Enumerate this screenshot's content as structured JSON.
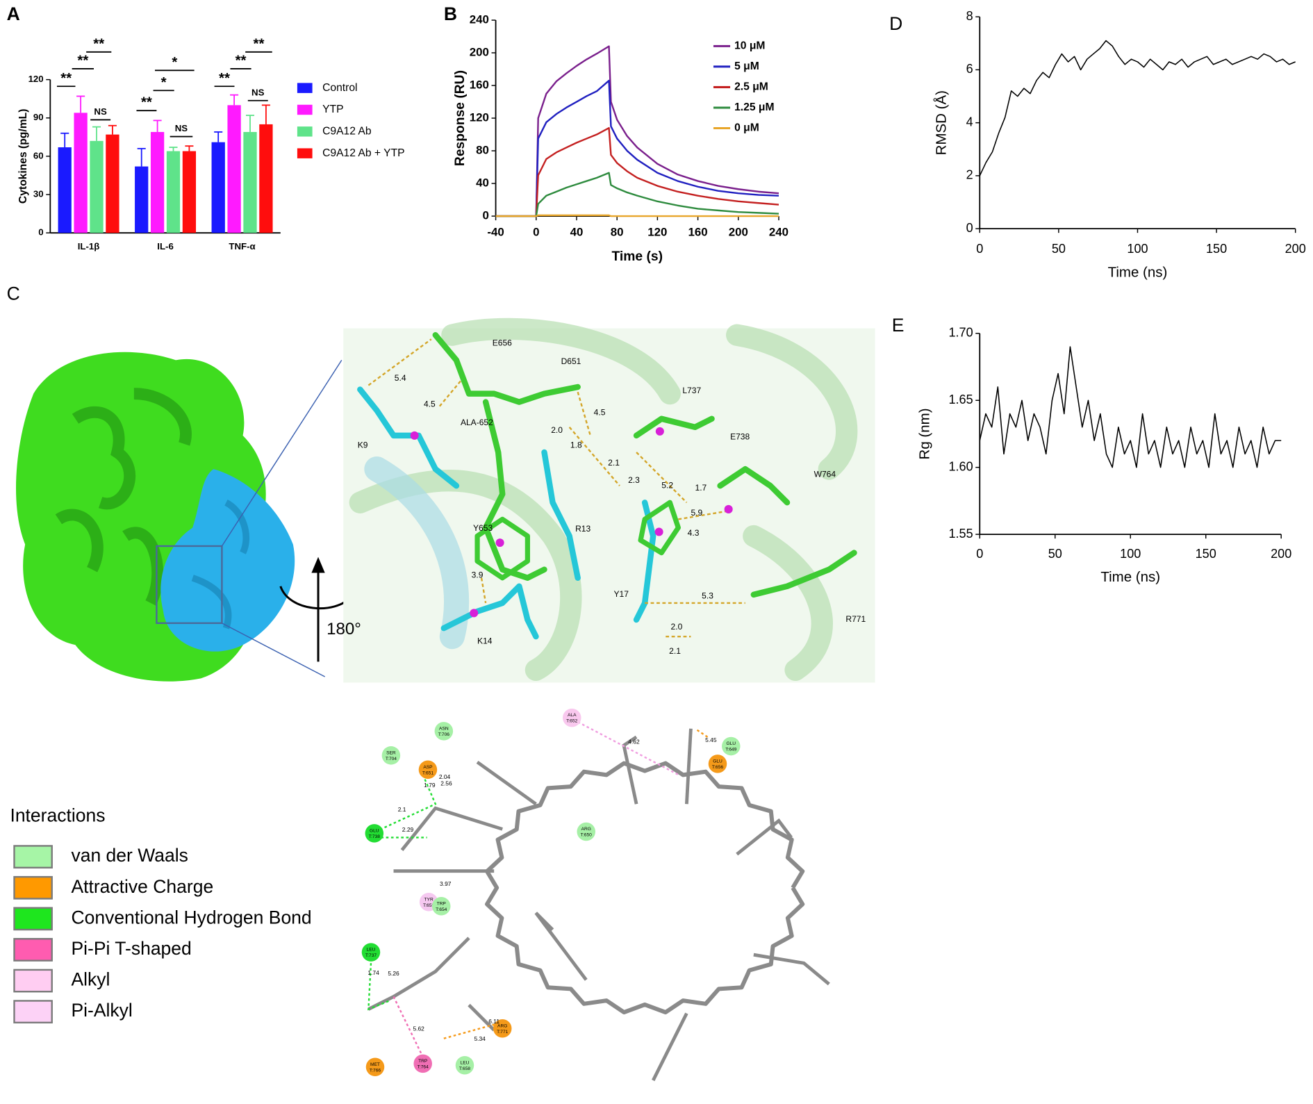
{
  "chart_data": [
    {
      "type": "bar",
      "panel": "A",
      "y_label": "Cytokines (pg/mL)",
      "categories": [
        "IL-1β",
        "IL-6",
        "TNF-α"
      ],
      "series": [
        {
          "name": "Control",
          "color": "#1a1aff",
          "values": [
            67,
            52,
            71
          ],
          "errors": [
            11,
            14,
            8
          ]
        },
        {
          "name": "YTP",
          "color": "#ff1aff",
          "values": [
            94,
            79,
            100
          ],
          "errors": [
            13,
            9,
            8
          ]
        },
        {
          "name": "C9A12 Ab",
          "color": "#5fe38a",
          "values": [
            72,
            64,
            79
          ],
          "errors": [
            11,
            3,
            13
          ]
        },
        {
          "name": "C9A12 Ab + YTP",
          "color": "#ff0d0d",
          "values": [
            77,
            64,
            85
          ],
          "errors": [
            7,
            4,
            15
          ]
        }
      ],
      "annotations": [
        "**",
        "**",
        "**",
        "NS",
        "**",
        "*",
        "*",
        "NS",
        "**",
        "**",
        "**",
        "NS"
      ],
      "ylim": [
        0,
        120
      ],
      "yticks": [
        0,
        30,
        60,
        90,
        120
      ]
    },
    {
      "type": "line",
      "panel": "B",
      "x_label": "Time (s)",
      "y_label": "Response (RU)",
      "x": [
        -40,
        0,
        2,
        10,
        20,
        30,
        40,
        50,
        60,
        72,
        74,
        80,
        90,
        100,
        120,
        140,
        160,
        180,
        200,
        220,
        240
      ],
      "series": [
        {
          "name": "10 μM",
          "color": "#7a1f8c",
          "values": [
            0,
            0,
            120,
            150,
            165,
            175,
            184,
            192,
            199,
            208,
            140,
            118,
            98,
            84,
            64,
            51,
            43,
            37,
            33,
            30,
            28
          ]
        },
        {
          "name": "5 μM",
          "color": "#2020c0",
          "values": [
            0,
            0,
            95,
            115,
            125,
            133,
            140,
            147,
            153,
            166,
            110,
            95,
            80,
            69,
            53,
            43,
            36,
            31,
            28,
            26,
            25
          ]
        },
        {
          "name": "2.5 μM",
          "color": "#c42020",
          "values": [
            0,
            0,
            50,
            70,
            78,
            84,
            90,
            95,
            100,
            108,
            75,
            65,
            55,
            47,
            37,
            30,
            25,
            21,
            18,
            16,
            14
          ]
        },
        {
          "name": "1.25 μM",
          "color": "#2e8b3e",
          "values": [
            0,
            0,
            15,
            25,
            30,
            35,
            39,
            43,
            47,
            53,
            38,
            34,
            29,
            25,
            18,
            13,
            9,
            7,
            5,
            4,
            3
          ]
        },
        {
          "name": "0 μM",
          "color": "#e8a62a",
          "values": [
            0,
            0,
            1,
            1,
            1,
            1,
            1,
            1,
            1,
            1,
            0,
            0,
            0,
            0,
            0,
            0,
            0,
            0,
            0,
            0,
            0
          ]
        }
      ],
      "xlim": [
        -40,
        240
      ],
      "xticks": [
        -40,
        0,
        40,
        80,
        120,
        160,
        200,
        240
      ],
      "ylim": [
        0,
        240
      ],
      "yticks": [
        0,
        40,
        80,
        120,
        160,
        200,
        240
      ]
    },
    {
      "type": "line",
      "panel": "D",
      "x_label": "Time (ns)",
      "y_label": "RMSD (Å)",
      "x": [
        0,
        4,
        8,
        12,
        16,
        20,
        24,
        28,
        32,
        36,
        40,
        44,
        48,
        52,
        56,
        60,
        64,
        68,
        72,
        76,
        80,
        84,
        88,
        92,
        96,
        100,
        104,
        108,
        112,
        116,
        120,
        124,
        128,
        132,
        136,
        140,
        144,
        148,
        152,
        156,
        160,
        164,
        168,
        172,
        176,
        180,
        184,
        188,
        192,
        196,
        200
      ],
      "series": [
        {
          "name": "RMSD",
          "color": "#000000",
          "values": [
            2.0,
            2.5,
            2.9,
            3.6,
            4.2,
            5.2,
            5.0,
            5.3,
            5.1,
            5.6,
            5.9,
            5.7,
            6.2,
            6.6,
            6.3,
            6.5,
            6.0,
            6.4,
            6.6,
            6.8,
            7.1,
            6.9,
            6.5,
            6.2,
            6.4,
            6.3,
            6.1,
            6.4,
            6.2,
            6.0,
            6.3,
            6.2,
            6.4,
            6.1,
            6.3,
            6.4,
            6.5,
            6.2,
            6.3,
            6.4,
            6.2,
            6.3,
            6.4,
            6.5,
            6.4,
            6.6,
            6.5,
            6.3,
            6.4,
            6.2,
            6.3
          ]
        }
      ],
      "xlim": [
        0,
        200
      ],
      "xticks": [
        0,
        50,
        100,
        150,
        200
      ],
      "ylim": [
        0,
        8
      ],
      "yticks": [
        0,
        2,
        4,
        6,
        8
      ]
    },
    {
      "type": "line",
      "panel": "E",
      "x_label": "Time (ns)",
      "y_label": "Rg (nm)",
      "x": [
        0,
        4,
        8,
        12,
        16,
        20,
        24,
        28,
        32,
        36,
        40,
        44,
        48,
        52,
        56,
        60,
        64,
        68,
        72,
        76,
        80,
        84,
        88,
        92,
        96,
        100,
        104,
        108,
        112,
        116,
        120,
        124,
        128,
        132,
        136,
        140,
        144,
        148,
        152,
        156,
        160,
        164,
        168,
        172,
        176,
        180,
        184,
        188,
        192,
        196,
        200
      ],
      "series": [
        {
          "name": "Rg",
          "color": "#000000",
          "values": [
            1.62,
            1.64,
            1.63,
            1.66,
            1.61,
            1.64,
            1.63,
            1.65,
            1.62,
            1.64,
            1.63,
            1.61,
            1.65,
            1.67,
            1.64,
            1.69,
            1.66,
            1.63,
            1.65,
            1.62,
            1.64,
            1.61,
            1.6,
            1.63,
            1.61,
            1.62,
            1.6,
            1.64,
            1.61,
            1.62,
            1.6,
            1.63,
            1.61,
            1.62,
            1.6,
            1.63,
            1.61,
            1.62,
            1.6,
            1.64,
            1.61,
            1.62,
            1.6,
            1.63,
            1.61,
            1.62,
            1.6,
            1.63,
            1.61,
            1.62,
            1.62
          ]
        }
      ],
      "xlim": [
        0,
        200
      ],
      "xticks": [
        0,
        50,
        100,
        150,
        200
      ],
      "ylim": [
        1.55,
        1.7
      ],
      "yticks": [
        1.55,
        {
          "value": 1.6,
          "label": "1.60"
        },
        1.65,
        {
          "value": 1.7,
          "label": "1.70"
        }
      ]
    }
  ],
  "panel_c": {
    "panel": "C",
    "rotation": "180°",
    "residues_3d": [
      "E656",
      "D651",
      "L737",
      "E738",
      "W764",
      "K9",
      "ALA-652",
      "Y653",
      "R13",
      "Y17",
      "R771",
      "K14"
    ],
    "distances_3d": [
      "5.4",
      "4.5",
      "2.0",
      "1.8",
      "4.5",
      "2.1",
      "2.3",
      "5.2",
      "1.7",
      "5.9",
      "4.3",
      "3.9",
      "5.3",
      "2.0",
      "2.1"
    ],
    "diagram": {
      "residues": [
        {
          "name": "ALA",
          "chain": "T:652",
          "color": "#f9c8ee"
        },
        {
          "name": "ASN",
          "chain": "T:706",
          "color": "#a6f0a6"
        },
        {
          "name": "SER",
          "chain": "T:704",
          "color": "#a6f0a6"
        },
        {
          "name": "ASP",
          "chain": "T:651",
          "color": "#f59a1a"
        },
        {
          "name": "GLU",
          "chain": "T:649",
          "color": "#a6f0a6"
        },
        {
          "name": "GLU",
          "chain": "T:656",
          "color": "#f59a1a"
        },
        {
          "name": "GLU",
          "chain": "T:738",
          "color": "#22dd33"
        },
        {
          "name": "ARG",
          "chain": "T:650",
          "color": "#a6f0a6"
        },
        {
          "name": "TYR",
          "chain": "T:653",
          "color": "#f5c8f0"
        },
        {
          "name": "TRP",
          "chain": "T:654",
          "color": "#a6f0a6"
        },
        {
          "name": "LEU",
          "chain": "T:737",
          "color": "#22dd33"
        },
        {
          "name": "MET",
          "chain": "T:766",
          "color": "#f59a1a"
        },
        {
          "name": "TRP",
          "chain": "T:764",
          "color": "#f06eb4"
        },
        {
          "name": "LEU",
          "chain": "T:658",
          "color": "#a6f0a6"
        },
        {
          "name": "ARG",
          "chain": "T:771",
          "color": "#f59a1a"
        }
      ],
      "distances": [
        "4.62",
        "5.45",
        "2.04",
        "1.79",
        "2.56",
        "2.1",
        "2.29",
        "3.97",
        "1.74",
        "5.26",
        "5.62",
        "5.34",
        "6.11"
      ]
    },
    "legend": {
      "title": "Interactions",
      "items": [
        {
          "label": "van der Waals",
          "color": "#a6f5a6"
        },
        {
          "label": "Attractive Charge",
          "color": "#ff9900"
        },
        {
          "label": "Conventional Hydrogen Bond",
          "color": "#1ee61e"
        },
        {
          "label": "Pi-Pi T-shaped",
          "color": "#ff5cb0"
        },
        {
          "label": "Alkyl",
          "color": "#ffcdf2"
        },
        {
          "label": "Pi-Alkyl",
          "color": "#fcd2f6"
        }
      ]
    }
  }
}
